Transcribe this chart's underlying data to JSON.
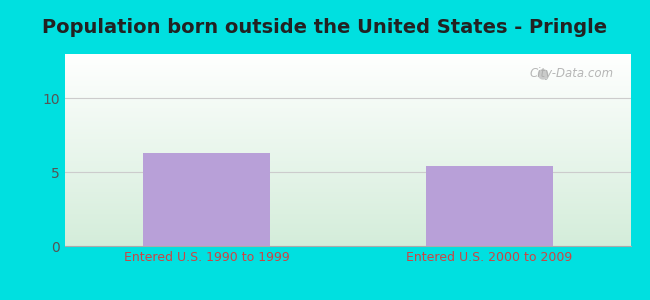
{
  "title": "Population born outside the United States - Pringle",
  "categories": [
    "Entered U.S. 1990 to 1999",
    "Entered U.S. 2000 to 2009"
  ],
  "values": [
    6.3,
    5.4
  ],
  "bar_color": "#b8a0d8",
  "bar_width": 0.45,
  "ylim": [
    0,
    13
  ],
  "yticks": [
    0,
    5,
    10
  ],
  "outer_bg": "#00e0e0",
  "plot_bg_top": "#ffffff",
  "plot_bg_bottom": "#d4edda",
  "title_fontsize": 14,
  "tick_label_color": "#555555",
  "tick_fontsize": 10,
  "xlabel_fontsize": 9,
  "xlabel_color": "#cc4444",
  "watermark": "City-Data.com"
}
